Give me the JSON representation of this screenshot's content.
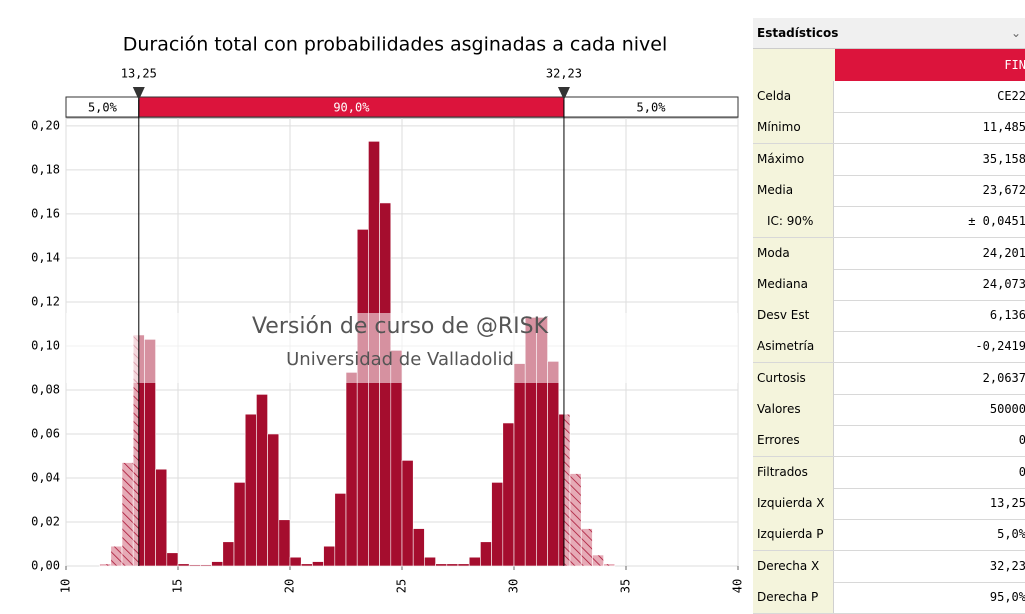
{
  "chart_data": {
    "type": "histogram",
    "title": "Duración total con probabilidades asginadas a cada nivel",
    "bins": [
      11.5,
      12,
      12.5,
      13,
      13.5,
      14,
      14.5,
      15,
      15.5,
      16,
      16.5,
      17,
      17.5,
      18,
      18.5,
      19,
      19.5,
      20,
      20.5,
      21,
      21.5,
      22,
      22.5,
      23,
      23.5,
      24,
      24.5,
      25,
      25.5,
      26,
      26.5,
      27,
      27.5,
      28,
      28.5,
      29,
      29.5,
      30,
      30.5,
      31,
      31.5,
      32,
      32.5,
      33,
      33.5,
      34,
      34.5
    ],
    "values": [
      0.001,
      0.009,
      0.047,
      0.105,
      0.103,
      0.044,
      0.006,
      0.001,
      0.0005,
      0.0005,
      0.002,
      0.011,
      0.038,
      0.069,
      0.078,
      0.06,
      0.021,
      0.004,
      0.001,
      0.002,
      0.009,
      0.033,
      0.088,
      0.153,
      0.193,
      0.165,
      0.098,
      0.048,
      0.017,
      0.004,
      0.001,
      0.001,
      0.001,
      0.004,
      0.011,
      0.038,
      0.065,
      0.092,
      0.113,
      0.113,
      0.093,
      0.069,
      0.042,
      0.017,
      0.005,
      0.001
    ],
    "color": "#a50d2e",
    "xlim": [
      10,
      40
    ],
    "xticks": [
      10,
      15,
      20,
      25,
      30,
      35,
      40
    ],
    "ylim": [
      0,
      0.2036
    ],
    "yticks": [
      {
        "value": 0,
        "label": "0,00"
      },
      {
        "value": 0.02,
        "label": "0,02"
      },
      {
        "value": 0.04,
        "label": "0,04"
      },
      {
        "value": 0.06,
        "label": "0,06"
      },
      {
        "value": 0.08,
        "label": "0,08"
      },
      {
        "value": 0.1,
        "label": "0,10"
      },
      {
        "value": 0.12,
        "label": "0,12"
      },
      {
        "value": 0.14,
        "label": "0,14"
      },
      {
        "value": 0.16,
        "label": "0,16"
      },
      {
        "value": 0.18,
        "label": "0,18"
      },
      {
        "value": 0.2,
        "label": "0,20"
      }
    ],
    "grid": true,
    "delimiters": [
      {
        "value": 13.25,
        "label": "13,25"
      },
      {
        "value": 32.23,
        "label": "32,23"
      }
    ],
    "probabilities": {
      "values": [
        5,
        90,
        5
      ],
      "value_labels": [
        "5,0%",
        "90,0%",
        "5,0%"
      ]
    },
    "watermark": [
      "Versión de curso de @RISK",
      "Universidad de Valladolid"
    ]
  },
  "statistics": {
    "title": "Estadísticos",
    "column": "FIN",
    "rows": [
      [
        "Celda",
        "CE22"
      ],
      [
        "Mínimo",
        "11,485"
      ],
      [
        "Máximo",
        "35,158"
      ],
      [
        "Media",
        "23,672"
      ],
      [
        "IC: 90%",
        "± 0,0451"
      ],
      [
        "Moda",
        "24,201"
      ],
      [
        "Mediana",
        "24,073"
      ],
      [
        "Desv Est",
        "6,136"
      ],
      [
        "Asimetría",
        "-0,2419"
      ],
      [
        "Curtosis",
        "2,0637"
      ],
      [
        "Valores",
        "50000"
      ],
      [
        "Errores",
        "0"
      ],
      [
        "Filtrados",
        "0"
      ],
      [
        "Izquierda X",
        "13,25"
      ],
      [
        "Izquierda P",
        "5,0%"
      ],
      [
        "Derecha X",
        "32,23"
      ],
      [
        "Derecha P",
        "95,0%"
      ]
    ]
  }
}
